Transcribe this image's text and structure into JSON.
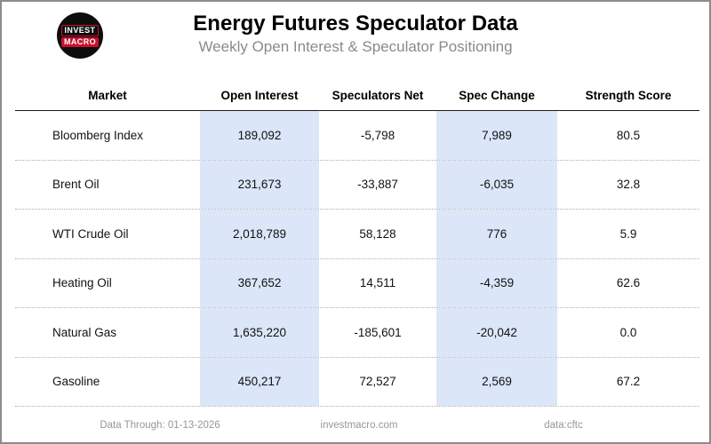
{
  "header": {
    "logo": {
      "line1": "INVEST",
      "line2": "MACRO"
    },
    "title": "Energy Futures Speculator Data",
    "subtitle": "Weekly Open Interest & Speculator Positioning"
  },
  "table": {
    "columns": [
      "Market",
      "Open Interest",
      "Speculators Net",
      "Spec Change",
      "Strength Score"
    ],
    "rows": [
      {
        "market": "Bloomberg Index",
        "open_interest": "189,092",
        "spec_net": "-5,798",
        "spec_change": "7,989",
        "strength": "80.5"
      },
      {
        "market": "Brent Oil",
        "open_interest": "231,673",
        "spec_net": "-33,887",
        "spec_change": "-6,035",
        "strength": "32.8"
      },
      {
        "market": "WTI Crude Oil",
        "open_interest": "2,018,789",
        "spec_net": "58,128",
        "spec_change": "776",
        "strength": "5.9"
      },
      {
        "market": "Heating Oil",
        "open_interest": "367,652",
        "spec_net": "14,511",
        "spec_change": "-4,359",
        "strength": "62.6"
      },
      {
        "market": "Natural Gas",
        "open_interest": "1,635,220",
        "spec_net": "-185,601",
        "spec_change": "-20,042",
        "strength": "0.0"
      },
      {
        "market": "Gasoline",
        "open_interest": "450,217",
        "spec_net": "72,527",
        "spec_change": "2,569",
        "strength": "67.2"
      }
    ]
  },
  "chart_data": {
    "type": "table",
    "title": "Energy Futures Speculator Data",
    "subtitle": "Weekly Open Interest & Speculator Positioning",
    "columns": [
      "Market",
      "Open Interest",
      "Speculators Net",
      "Spec Change",
      "Strength Score"
    ],
    "rows": [
      [
        "Bloomberg Index",
        189092,
        -5798,
        7989,
        80.5
      ],
      [
        "Brent Oil",
        231673,
        -33887,
        -6035,
        32.8
      ],
      [
        "WTI Crude Oil",
        2018789,
        58128,
        776,
        5.9
      ],
      [
        "Heating Oil",
        367652,
        14511,
        -4359,
        62.6
      ],
      [
        "Natural Gas",
        1635220,
        -185601,
        -20042,
        0.0
      ],
      [
        "Gasoline",
        450217,
        72527,
        2569,
        67.2
      ]
    ],
    "highlighted_columns": [
      "Open Interest",
      "Spec Change"
    ]
  },
  "footer": {
    "data_through": "Data Through: 01-13-2026",
    "website": "investmacro.com",
    "source": "data:cftc"
  },
  "colors": {
    "stripe": "#dbe6f9",
    "border": "#8c8c8c",
    "subtitle_text": "#8a8a8a",
    "footer_text": "#979797",
    "logo_red": "#c8102e"
  }
}
